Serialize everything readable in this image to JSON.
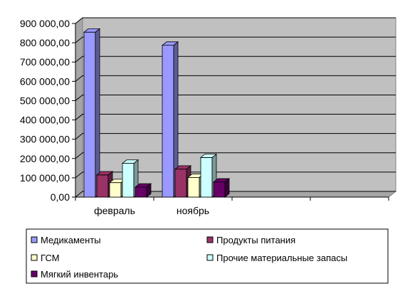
{
  "chart_data": {
    "type": "bar",
    "style": "3d-clustered-column",
    "title": "",
    "xlabel": "",
    "ylabel": "",
    "categories": [
      "февраль",
      "ноябрь",
      "",
      ""
    ],
    "series": [
      {
        "name": "Медикаменты",
        "color": "#9999FF",
        "values": [
          855000,
          787000,
          null,
          null
        ]
      },
      {
        "name": "Продукты питания",
        "color": "#993366",
        "values": [
          115000,
          145000,
          null,
          null
        ]
      },
      {
        "name": "ГСМ",
        "color": "#FFFFCC",
        "values": [
          75000,
          102000,
          null,
          null
        ]
      },
      {
        "name": "Прочие материальные запасы",
        "color": "#CCFFFF",
        "values": [
          175000,
          205000,
          null,
          null
        ]
      },
      {
        "name": "Мягкий инвентарь",
        "color": "#660066",
        "values": [
          52000,
          78000,
          null,
          null
        ]
      }
    ],
    "ylim": [
      0,
      900000
    ],
    "yticks": [
      {
        "value": 0,
        "label": "0,00"
      },
      {
        "value": 100000,
        "label": "100 000,00"
      },
      {
        "value": 200000,
        "label": "200 000,00"
      },
      {
        "value": 300000,
        "label": "300 000,00"
      },
      {
        "value": 400000,
        "label": "400 000,00"
      },
      {
        "value": 500000,
        "label": "500 000,00"
      },
      {
        "value": 600000,
        "label": "600 000,00"
      },
      {
        "value": 700000,
        "label": "700 000,00"
      },
      {
        "value": 800000,
        "label": "800 000,00"
      },
      {
        "value": 900000,
        "label": "900 000,00"
      }
    ],
    "grid": true,
    "legend_position": "bottom",
    "plot_background": "#C0C0C0",
    "grid_color": "#000000"
  }
}
